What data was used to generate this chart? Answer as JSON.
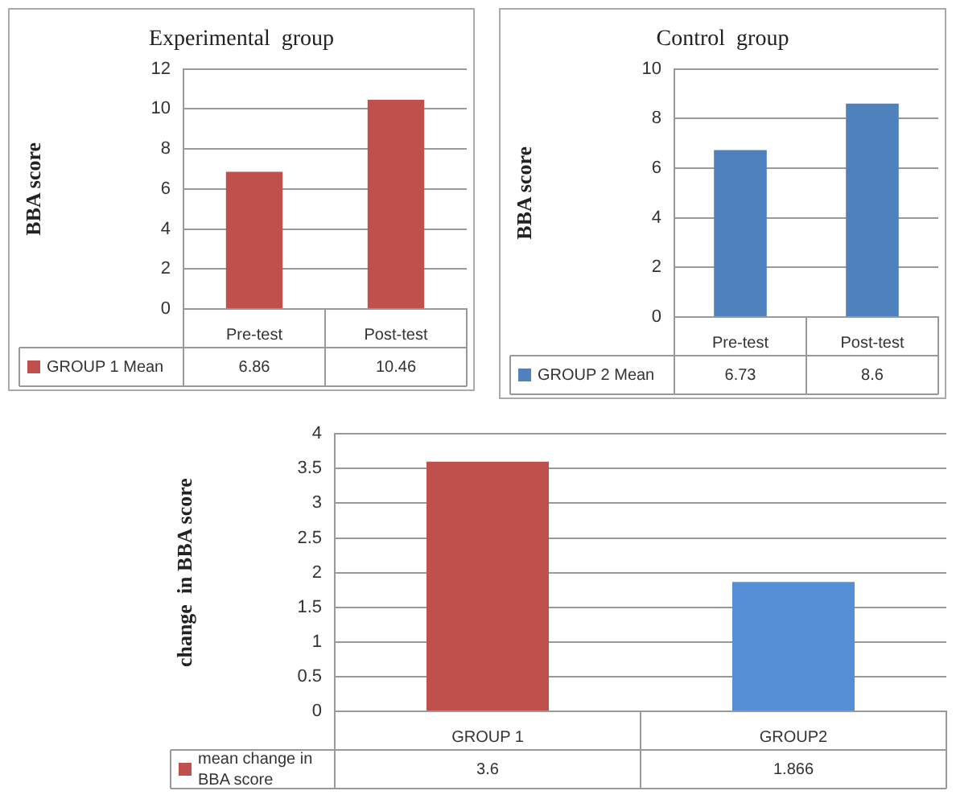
{
  "chart_data": [
    {
      "type": "bar",
      "title": "Experimental  group",
      "ylabel": "BBA score",
      "categories": [
        "Pre-test",
        "Post-test"
      ],
      "series": [
        {
          "name": "GROUP 1 Mean",
          "color": "#c0504d",
          "values": [
            6.86,
            10.46
          ]
        }
      ],
      "ylim": [
        0,
        12
      ],
      "yticks": [
        0,
        2,
        4,
        6,
        8,
        10,
        12
      ],
      "grid": "y",
      "legend": "bottom",
      "data_labels": true
    },
    {
      "type": "bar",
      "title": "Control  group",
      "ylabel": "BBA score",
      "categories": [
        "Pre-test",
        "Post-test"
      ],
      "series": [
        {
          "name": "GROUP 2 Mean",
          "color": "#4f81bd",
          "values": [
            6.73,
            8.6
          ]
        }
      ],
      "ylim": [
        0,
        10
      ],
      "yticks": [
        0,
        2,
        4,
        6,
        8,
        10
      ],
      "grid": "y",
      "legend": "bottom",
      "data_labels": true
    },
    {
      "type": "bar",
      "ylabel": "change  in BBA score",
      "categories": [
        "GROUP 1",
        "GROUP2"
      ],
      "series": [
        {
          "name": "mean change in BBA score",
          "colors": [
            "#c0504d",
            "#558ed5"
          ],
          "values": [
            3.6,
            1.866
          ]
        }
      ],
      "ylim": [
        0,
        4
      ],
      "yticks": [
        0,
        0.5,
        1,
        1.5,
        2,
        2.5,
        3,
        3.5,
        4
      ],
      "grid": "y",
      "legend": "bottom",
      "data_labels": true
    }
  ]
}
